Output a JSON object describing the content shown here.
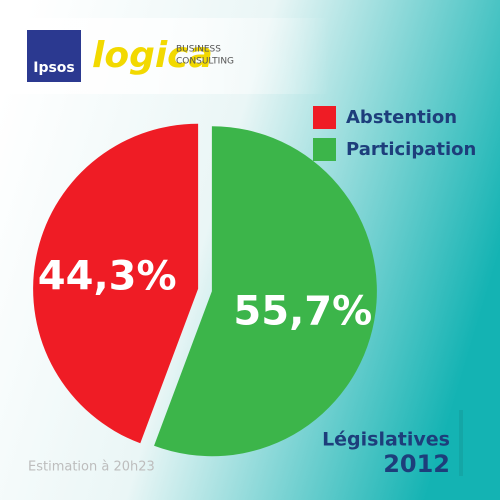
{
  "branding": {
    "ipsos": "Ipsos",
    "logica": "logica",
    "business": "BUSINESS",
    "consulting": "CONSULTING"
  },
  "chart_data": {
    "type": "pie",
    "title": "Législatives",
    "subtitle": "2012",
    "annotation": "Estimation à 20h23",
    "categories": [
      "Abstention",
      "Participation"
    ],
    "values": [
      44.3,
      55.7
    ],
    "value_labels": [
      "44,3%",
      "55,7%"
    ],
    "colors": [
      "#ef1c25",
      "#3cb54a"
    ],
    "legend": "top-right"
  }
}
